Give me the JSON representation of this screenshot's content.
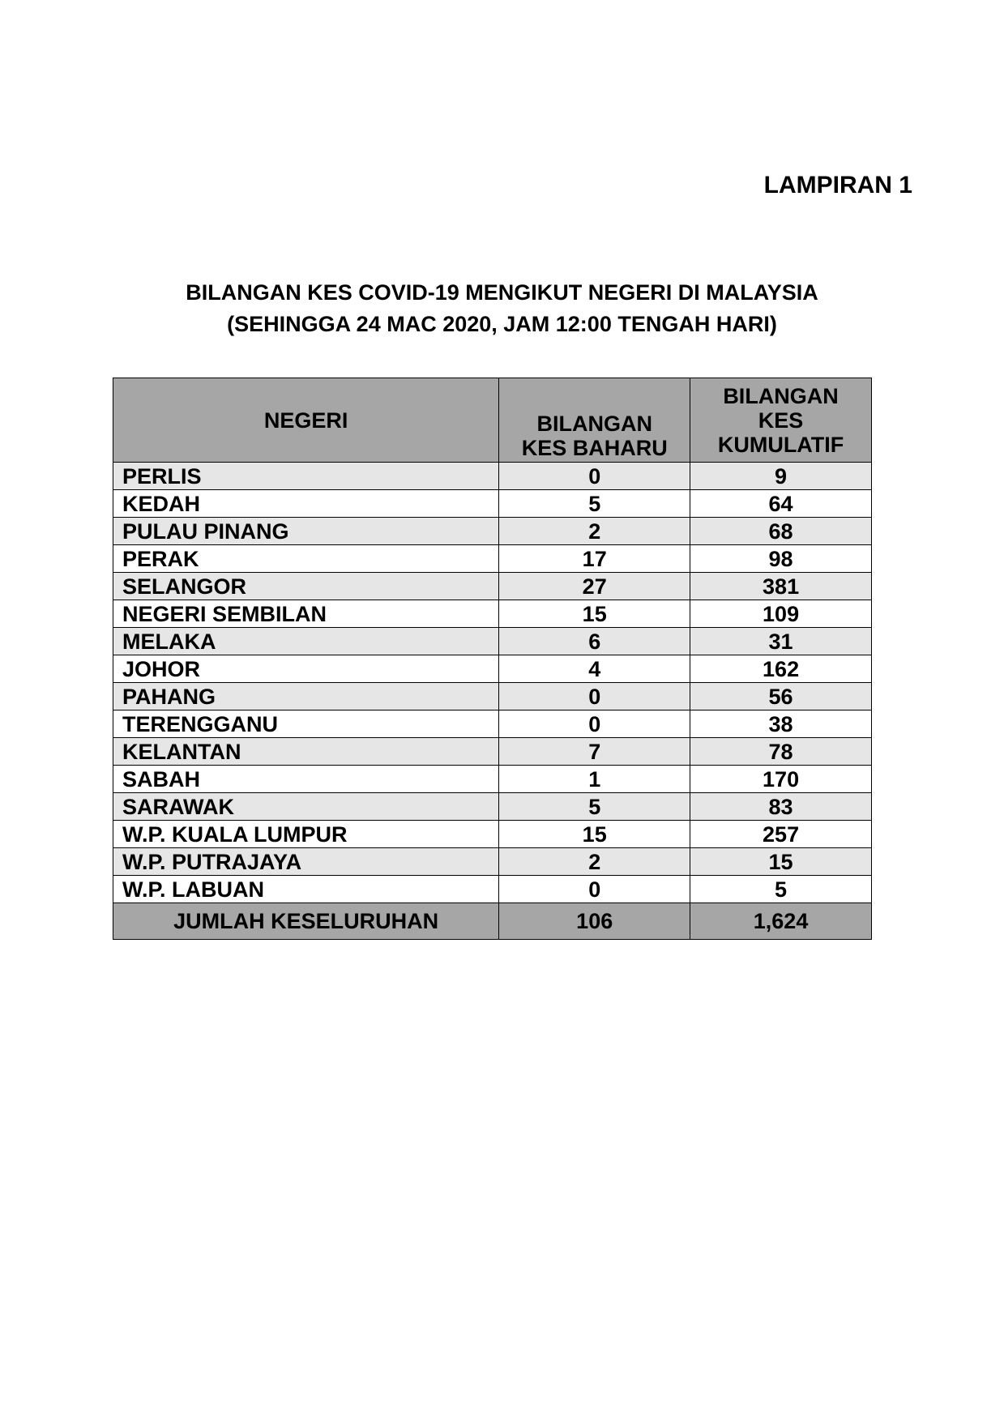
{
  "annex_label": "LAMPIRAN 1",
  "title_line1": "BILANGAN KES COVID-19 MENGIKUT NEGERI DI MALAYSIA",
  "title_line2": "(SEHINGGA 24 MAC 2020, JAM 12:00 TENGAH HARI)",
  "table": {
    "headers": [
      "NEGERI",
      "BILANGAN KES BAHARU",
      "BILANGAN KES KUMULATIF"
    ],
    "rows": [
      [
        "PERLIS",
        "0",
        "9"
      ],
      [
        "KEDAH",
        "5",
        "64"
      ],
      [
        "PULAU PINANG",
        "2",
        "68"
      ],
      [
        "PERAK",
        "17",
        "98"
      ],
      [
        "SELANGOR",
        "27",
        "381"
      ],
      [
        "NEGERI SEMBILAN",
        "15",
        "109"
      ],
      [
        "MELAKA",
        "6",
        "31"
      ],
      [
        "JOHOR",
        "4",
        "162"
      ],
      [
        "PAHANG",
        "0",
        "56"
      ],
      [
        "TERENGGANU",
        "0",
        "38"
      ],
      [
        "KELANTAN",
        "7",
        "78"
      ],
      [
        "SABAH",
        "1",
        "170"
      ],
      [
        "SARAWAK",
        "5",
        "83"
      ],
      [
        "W.P. KUALA LUMPUR",
        "15",
        "257"
      ],
      [
        "W.P. PUTRAJAYA",
        "2",
        "15"
      ],
      [
        "W.P. LABUAN",
        "0",
        "5"
      ]
    ],
    "total": [
      "JUMLAH KESELURUHAN",
      "106",
      "1,624"
    ]
  },
  "colors": {
    "header_bg": "#a6a6a6",
    "alt_row_bg": "#e6e6e6"
  }
}
